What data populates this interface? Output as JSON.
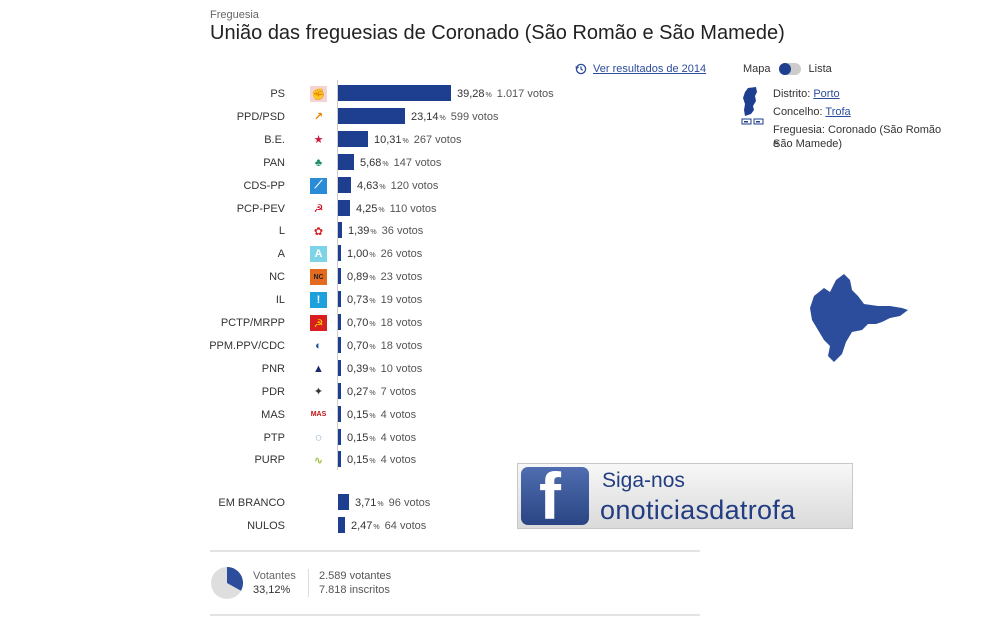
{
  "header": {
    "type_label": "Freguesia",
    "title": "União das freguesias de Coronado (São Romão e São Mamede)"
  },
  "history_link": {
    "label": "Ver resultados de 2014",
    "icon": "history-icon"
  },
  "view_toggle": {
    "map_label": "Mapa",
    "list_label": "Lista",
    "selected": "Mapa"
  },
  "location": {
    "district_label": "Distrito:",
    "district": "Porto",
    "municipality_label": "Concelho:",
    "municipality": "Trofa",
    "parish_label": "Freguesia:",
    "parish_line1": "Coronado (São Romão e",
    "parish_line2": "São Mamede)"
  },
  "parties": [
    {
      "name": "PS",
      "pct": "39,28",
      "votes": "1.017 votos",
      "share": 39.28,
      "logo": "ps-logo-icon"
    },
    {
      "name": "PPD/PSD",
      "pct": "23,14",
      "votes": "599 votos",
      "share": 23.14,
      "logo": "psd-logo-icon"
    },
    {
      "name": "B.E.",
      "pct": "10,31",
      "votes": "267 votos",
      "share": 10.31,
      "logo": "be-logo-icon"
    },
    {
      "name": "PAN",
      "pct": "5,68",
      "votes": "147 votos",
      "share": 5.68,
      "logo": "pan-logo-icon"
    },
    {
      "name": "CDS-PP",
      "pct": "4,63",
      "votes": "120 votos",
      "share": 4.63,
      "logo": "cds-logo-icon"
    },
    {
      "name": "PCP-PEV",
      "pct": "4,25",
      "votes": "110 votos",
      "share": 4.25,
      "logo": "cdu-logo-icon"
    },
    {
      "name": "L",
      "pct": "1,39",
      "votes": "36 votos",
      "share": 1.39,
      "logo": "livre-logo-icon"
    },
    {
      "name": "A",
      "pct": "1,00",
      "votes": "26 votos",
      "share": 1.0,
      "logo": "alianca-logo-icon"
    },
    {
      "name": "NC",
      "pct": "0,89",
      "votes": "23 votos",
      "share": 0.89,
      "logo": "nc-logo-icon"
    },
    {
      "name": "IL",
      "pct": "0,73",
      "votes": "19 votos",
      "share": 0.73,
      "logo": "il-logo-icon"
    },
    {
      "name": "PCTP/MRPP",
      "pct": "0,70",
      "votes": "18 votos",
      "share": 0.7,
      "logo": "mrpp-logo-icon"
    },
    {
      "name": "PPM.PPV/CDC",
      "pct": "0,70",
      "votes": "18 votos",
      "share": 0.7,
      "logo": "ppm-logo-icon"
    },
    {
      "name": "PNR",
      "pct": "0,39",
      "votes": "10 votos",
      "share": 0.39,
      "logo": "pnr-logo-icon"
    },
    {
      "name": "PDR",
      "pct": "0,27",
      "votes": "7 votos",
      "share": 0.27,
      "logo": "pdr-logo-icon"
    },
    {
      "name": "MAS",
      "pct": "0,15",
      "votes": "4 votos",
      "share": 0.15,
      "logo": "mas-logo-icon"
    },
    {
      "name": "PTP",
      "pct": "0,15",
      "votes": "4 votos",
      "share": 0.15,
      "logo": "ptp-logo-icon"
    },
    {
      "name": "PURP",
      "pct": "0,15",
      "votes": "4 votos",
      "share": 0.15,
      "logo": "purp-logo-icon"
    }
  ],
  "other_votes": [
    {
      "name": "EM BRANCO",
      "pct": "3,71",
      "votes": "96 votos",
      "share": 3.71
    },
    {
      "name": "NULOS",
      "pct": "2,47",
      "votes": "64 votos",
      "share": 2.47
    }
  ],
  "pct_symbol": "%",
  "turnout": {
    "label": "Votantes",
    "pct": "33,12%",
    "share": 33.12,
    "voters": "2.589 votantes",
    "registered": "7.818 inscritos"
  },
  "banner": {
    "follow": "Siga-nos",
    "handle": "onoticiasdatrofa",
    "icon": "facebook-icon"
  },
  "colors": {
    "bar": "#1e3f8f",
    "accent": "#2c4c9c"
  }
}
